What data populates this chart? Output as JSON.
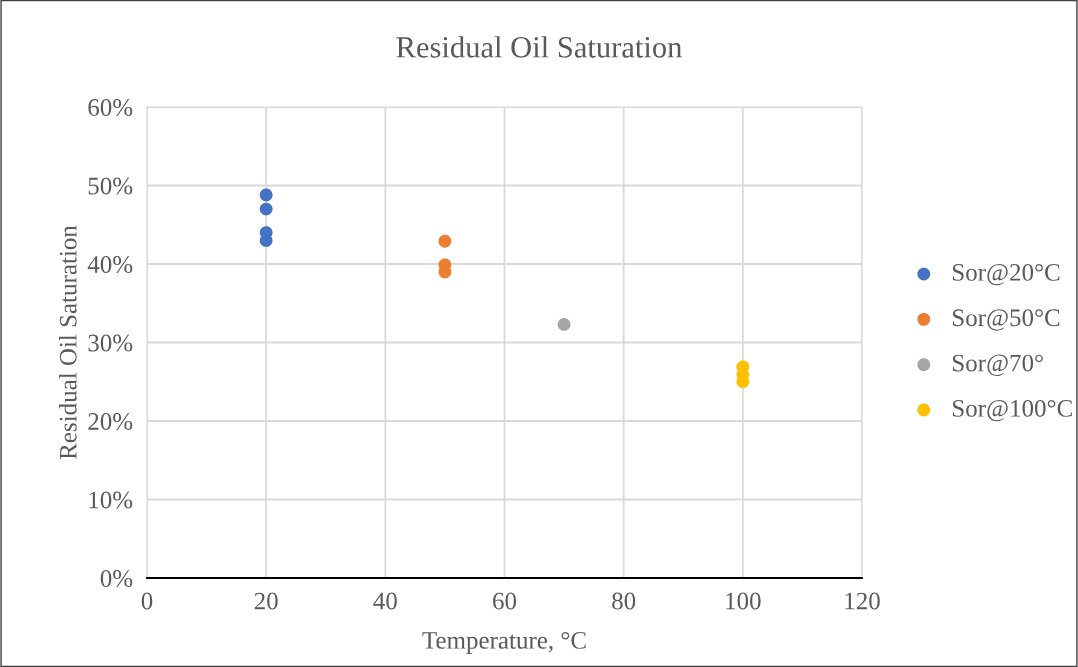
{
  "chart_data": {
    "type": "scatter",
    "title": "Residual Oil Saturation",
    "xlabel": "Temperature, °C",
    "ylabel": "Residual Oil Saturation",
    "series": [
      {
        "name": "Sor@20°C",
        "color": "#4472c4",
        "x": [
          20,
          20,
          20,
          20
        ],
        "values": [
          48.8,
          47.0,
          44.0,
          43.0
        ]
      },
      {
        "name": "Sor@50°C",
        "color": "#ed7d31",
        "x": [
          50,
          50,
          50
        ],
        "values": [
          42.9,
          39.9,
          39.0
        ]
      },
      {
        "name": "Sor@70°",
        "color": "#a5a5a5",
        "x": [
          70
        ],
        "values": [
          32.3
        ]
      },
      {
        "name": "Sor@100°C",
        "color": "#ffc000",
        "x": [
          100,
          100,
          100
        ],
        "values": [
          26.9,
          25.9,
          25.0
        ]
      }
    ],
    "xlim": [
      0,
      120
    ],
    "xticks": [
      0,
      20,
      40,
      60,
      80,
      100,
      120
    ],
    "ylim": [
      0,
      60
    ],
    "yticks": [
      {
        "value": 0,
        "label": "0%"
      },
      {
        "value": 10,
        "label": "10%"
      },
      {
        "value": 20,
        "label": "20%"
      },
      {
        "value": 30,
        "label": "30%"
      },
      {
        "value": 40,
        "label": "40%"
      },
      {
        "value": 50,
        "label": "50%"
      },
      {
        "value": 60,
        "label": "60%"
      }
    ],
    "grid": true,
    "legend": "right",
    "marker": "circle"
  }
}
